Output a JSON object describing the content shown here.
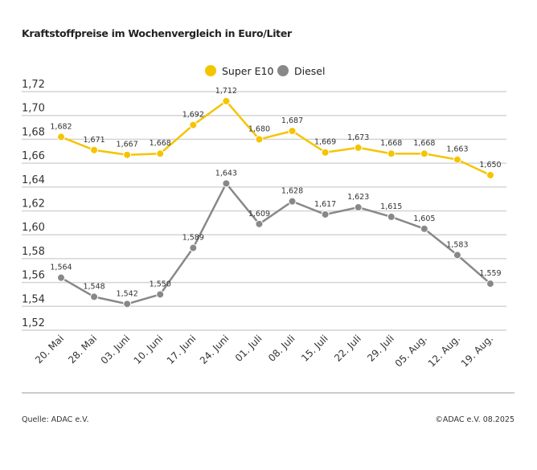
{
  "chart_data": {
    "type": "line",
    "title": "Kraftstoffpreise im Wochenvergleich in Euro/Liter",
    "categories": [
      "20. Mai",
      "28. Mai",
      "03. Juni",
      "10. Juni",
      "17. Juni",
      "24. Juni",
      "01. Juli",
      "08. Juli",
      "15. Juli",
      "22. Juli",
      "29. Juli",
      "05. Aug.",
      "12. Aug.",
      "19. Aug."
    ],
    "series": [
      {
        "name": "Super E10",
        "color": "#f5c400",
        "values": [
          1.682,
          1.671,
          1.667,
          1.668,
          1.692,
          1.712,
          1.68,
          1.687,
          1.669,
          1.673,
          1.668,
          1.668,
          1.663,
          1.65
        ]
      },
      {
        "name": "Diesel",
        "color": "#888888",
        "values": [
          1.564,
          1.548,
          1.542,
          1.55,
          1.589,
          1.643,
          1.609,
          1.628,
          1.617,
          1.623,
          1.615,
          1.605,
          1.583,
          1.559
        ]
      }
    ],
    "ylim": [
      1.52,
      1.72
    ],
    "yticks": [
      1.52,
      1.54,
      1.56,
      1.58,
      1.6,
      1.62,
      1.64,
      1.66,
      1.68,
      1.7,
      1.72
    ],
    "decimal_separator": ",",
    "grid": true,
    "legend_position": "top-center",
    "data_labels": true
  },
  "footer": {
    "source": "Quelle: ADAC e.V.",
    "copyright": "©ADAC e.V. 08.2025"
  }
}
